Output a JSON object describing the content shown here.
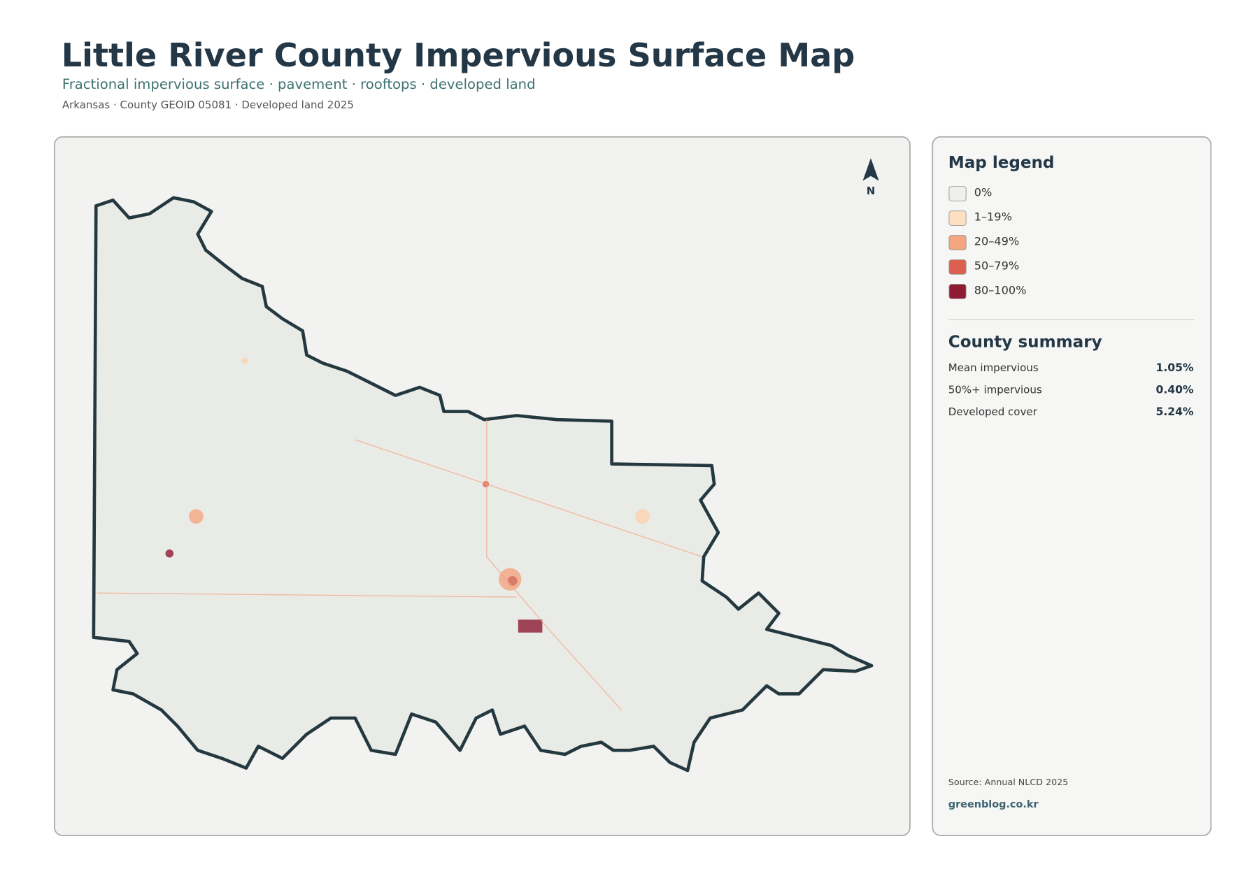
{
  "header": {
    "title": "Little River County Impervious Surface Map",
    "subtitle": "Fractional impervious surface · pavement · rooftops · developed land",
    "meta": "Arkansas · County GEOID 05081 · Developed land 2025"
  },
  "map": {
    "north_label": "N"
  },
  "legend": {
    "title": "Map legend",
    "items": [
      {
        "label": "0%",
        "color": "#efefec"
      },
      {
        "label": "1–19%",
        "color": "#fde0c2"
      },
      {
        "label": "20–49%",
        "color": "#f4a67e"
      },
      {
        "label": "50–79%",
        "color": "#dc5f4f"
      },
      {
        "label": "80–100%",
        "color": "#8e1b33"
      }
    ]
  },
  "summary": {
    "title": "County summary",
    "rows": [
      {
        "label": "Mean impervious",
        "value": "1.05%"
      },
      {
        "label": "50%+ impervious",
        "value": "0.40%"
      },
      {
        "label": "Developed cover",
        "value": "5.24%"
      }
    ]
  },
  "footer": {
    "source": "Source: Annual NLCD 2025",
    "credit": "greenblog.co.kr"
  }
}
